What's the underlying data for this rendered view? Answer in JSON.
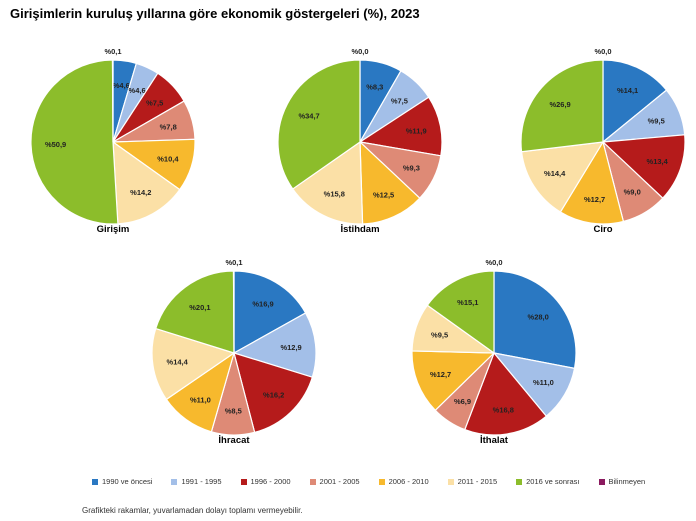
{
  "title": "Girişimlerin kuruluş yıllarına göre ekonomik göstergeleri (%), 2023",
  "footnote": "Grafikteki rakamlar, yuvarlamadan dolayı toplamı vermeyebilir.",
  "categories": [
    "1990 ve öncesi",
    "1991 - 1995",
    "1996 - 2000",
    "2001 - 2005",
    "2006 - 2010",
    "2011 - 2015",
    "2016 ve sonrası",
    "Bilinmeyen"
  ],
  "colors": [
    "#2a78c2",
    "#a3bfe8",
    "#b51b1b",
    "#de8a76",
    "#f7b92d",
    "#fbe0a6",
    "#8cbd2b",
    "#8b1a5f"
  ],
  "chart_data": [
    {
      "type": "pie",
      "title": "Girişim",
      "labels": [
        "%4,6",
        "%4,6",
        "%7,5",
        "%7,8",
        "%10,4",
        "%14,2",
        "%50,9",
        "%0,1"
      ],
      "values": [
        4.6,
        4.6,
        7.5,
        7.8,
        10.4,
        14.2,
        50.9,
        0.1
      ]
    },
    {
      "type": "pie",
      "title": "İstihdam",
      "labels": [
        "%8,3",
        "%7,5",
        "%11,9",
        "%9,3",
        "%12,5",
        "%15,8",
        "%34,7",
        "%0,0"
      ],
      "values": [
        8.3,
        7.5,
        11.9,
        9.3,
        12.5,
        15.8,
        34.7,
        0.0
      ]
    },
    {
      "type": "pie",
      "title": "Ciro",
      "labels": [
        "%14,1",
        "%9,5",
        "%13,4",
        "%9,0",
        "%12,7",
        "%14,4",
        "%26,9",
        "%0,0"
      ],
      "values": [
        14.1,
        9.5,
        13.4,
        9.0,
        12.7,
        14.4,
        26.9,
        0.0
      ]
    },
    {
      "type": "pie",
      "title": "İhracat",
      "labels": [
        "%16,9",
        "%12,9",
        "%16,2",
        "%8,5",
        "%11,0",
        "%14,4",
        "%20,1",
        "%0,1"
      ],
      "values": [
        16.9,
        12.9,
        16.2,
        8.5,
        11.0,
        14.4,
        20.1,
        0.1
      ]
    },
    {
      "type": "pie",
      "title": "İthalat",
      "labels": [
        "%28,0",
        "%11,0",
        "%16,8",
        "%6,9",
        "%12,7",
        "%9,5",
        "%15,1",
        "%0,0"
      ],
      "values": [
        28.0,
        11.0,
        16.8,
        6.9,
        12.7,
        9.5,
        15.1,
        0.0
      ]
    }
  ]
}
